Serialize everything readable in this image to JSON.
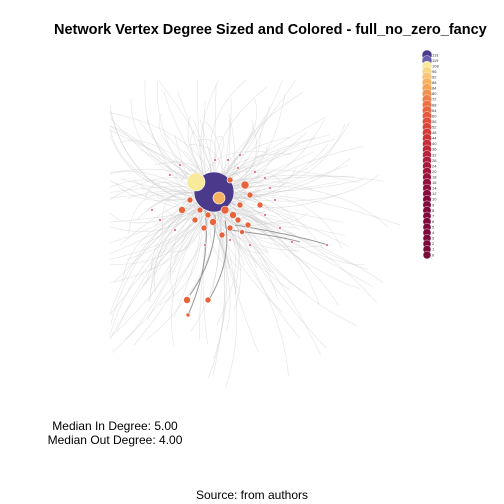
{
  "title": "Network Vertex Degree Sized and Colored - full_no_zero_fancy",
  "stats": {
    "median_in": "Median In Degree: 5.00",
    "median_out": "Median Out Degree: 4.00"
  },
  "source": "Source: from authors",
  "legend": {
    "labels": [
      "131",
      "119",
      "108",
      "96",
      "92",
      "88",
      "84",
      "80",
      "72",
      "68",
      "64",
      "60",
      "56",
      "52",
      "48",
      "44",
      "40",
      "36",
      "32",
      "28",
      "24",
      "20",
      "18",
      "16",
      "14",
      "12",
      "10",
      "9",
      "8",
      "7",
      "6",
      "5",
      "4",
      "3",
      "2",
      "1",
      "0"
    ]
  },
  "colors": {
    "hub_purple": "#4b3a8c",
    "light_yellow": "#f9e99a",
    "orange": "#e8623a",
    "red": "#d6203a",
    "dark_red": "#8b0a3c",
    "edge_gray": "#cccccc"
  }
}
